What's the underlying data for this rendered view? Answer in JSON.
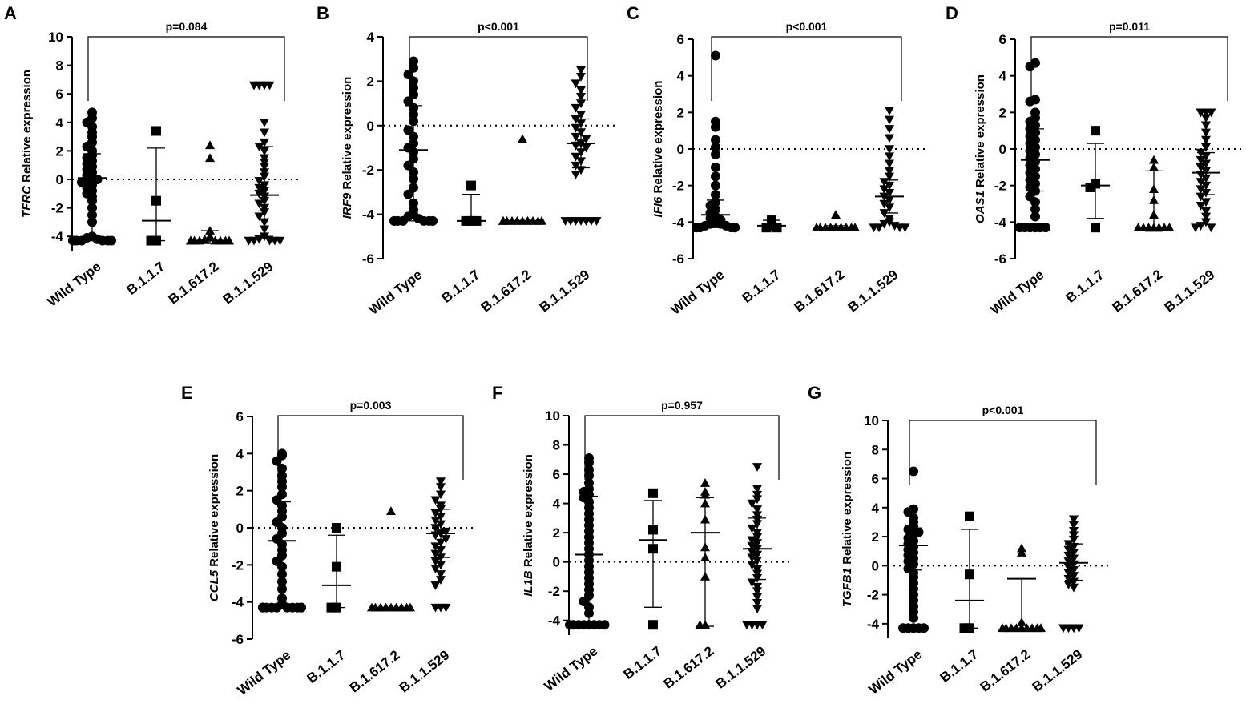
{
  "chart_data": [
    {
      "type": "scatter",
      "panel": "A",
      "gene": "TFRC",
      "ylabel_suffix": " Relative expression",
      "ylim": [
        -5,
        10
      ],
      "yticks": [
        -4,
        -2,
        0,
        2,
        4,
        6,
        8,
        10
      ],
      "categories": [
        "Wild Type",
        "B.1.1.7",
        "B.1.617.2",
        "B.1.1.529"
      ],
      "p_value": "p=0.084",
      "series": [
        {
          "name": "Wild Type",
          "marker": "circle",
          "mean": 0.1,
          "sd_low": -4.3,
          "sd_high": 1.8,
          "points": [
            4.7,
            4.3,
            4.0,
            3.7,
            3.3,
            3.0,
            2.6,
            2.3,
            2.0,
            1.7,
            1.5,
            1.3,
            1.1,
            0.9,
            0.7,
            0.5,
            0.3,
            0.2,
            0.1,
            0,
            -0.2,
            -0.4,
            -0.6,
            -0.8,
            -1.0,
            -1.2,
            -1.5,
            -2.0,
            -2.5,
            -3.0,
            -4.0,
            -4.1,
            -4.2,
            -4.3,
            -4.3,
            -4.3,
            -4.3,
            -4.3,
            -4.3,
            -4.3
          ]
        },
        {
          "name": "B.1.1.7",
          "marker": "square",
          "mean": -2.9,
          "sd_low": -4.3,
          "sd_high": 2.2,
          "points": [
            3.4,
            -1.5,
            -4.3,
            -4.3
          ]
        },
        {
          "name": "B.1.617.2",
          "marker": "triangle",
          "mean": -4.3,
          "sd_low": -4.5,
          "sd_high": -3.6,
          "points": [
            2.4,
            1.5,
            -3.6,
            -4.0,
            -4.2,
            -4.3,
            -4.3,
            -4.3,
            -4.3,
            -4.3,
            -4.3,
            -4.3,
            -4.3
          ]
        },
        {
          "name": "B.1.1.529",
          "marker": "tri-down",
          "mean": -1.1,
          "sd_low": -4.0,
          "sd_high": 2.3,
          "points": [
            6.6,
            6.6,
            6.6,
            6.6,
            4.0,
            3.3,
            2.6,
            2.3,
            2.0,
            1.5,
            1.2,
            0.9,
            0.5,
            0.2,
            -0.1,
            -0.4,
            -0.6,
            -0.8,
            -1.0,
            -1.2,
            -1.5,
            -1.7,
            -2.0,
            -2.3,
            -2.6,
            -3.0,
            -3.5,
            -4.0,
            -4.2,
            -4.3,
            -4.3,
            -4.3,
            -4.3,
            -4.3
          ]
        }
      ]
    },
    {
      "type": "scatter",
      "panel": "B",
      "gene": "IRF9",
      "ylabel_suffix": " Relative expression",
      "ylim": [
        -6,
        4
      ],
      "yticks": [
        -6,
        -4,
        -2,
        0,
        2,
        4
      ],
      "categories": [
        "Wild Type",
        "B.1.1.7",
        "B.1.617.2",
        "B.1.1.529"
      ],
      "p_value": "p<0.001",
      "series": [
        {
          "name": "Wild Type",
          "marker": "circle",
          "mean": -1.1,
          "sd_low": -4.3,
          "sd_high": 0.9,
          "points": [
            2.9,
            2.6,
            2.3,
            2.0,
            1.7,
            1.4,
            1.1,
            0.8,
            0.5,
            0.2,
            -0.2,
            -0.5,
            -0.8,
            -1.0,
            -1.2,
            -1.5,
            -1.8,
            -2.1,
            -2.4,
            -2.8,
            -3.1,
            -3.5,
            -3.8,
            -4.0,
            -4.1,
            -4.2,
            -4.3,
            -4.3,
            -4.3,
            -4.3,
            -4.3,
            -4.3,
            -4.3,
            -4.3
          ]
        },
        {
          "name": "B.1.1.7",
          "marker": "square",
          "mean": -4.3,
          "sd_low": -4.3,
          "sd_high": -3.1,
          "points": [
            -2.7,
            -4.3,
            -4.3,
            -4.3
          ]
        },
        {
          "name": "B.1.617.2",
          "marker": "triangle",
          "mean": -4.3,
          "sd_low": -4.3,
          "sd_high": -4.3,
          "points": [
            -0.6,
            -4.3,
            -4.3,
            -4.3,
            -4.3,
            -4.3,
            -4.3,
            -4.3,
            -4.3,
            -4.3,
            -4.3
          ]
        },
        {
          "name": "B.1.1.529",
          "marker": "tri-down",
          "mean": -0.8,
          "sd_low": -1.9,
          "sd_high": 0.3,
          "points": [
            2.5,
            2.2,
            1.9,
            1.6,
            1.3,
            1.0,
            0.8,
            0.5,
            0.3,
            0.1,
            -0.1,
            -0.3,
            -0.5,
            -0.6,
            -0.8,
            -0.9,
            -1.0,
            -1.2,
            -1.4,
            -1.6,
            -1.8,
            -2.0,
            -2.2,
            -4.3,
            -4.3,
            -4.3,
            -4.3,
            -4.3,
            -4.3,
            -4.3
          ]
        }
      ]
    },
    {
      "type": "scatter",
      "panel": "C",
      "gene": "IFI6",
      "ylabel_suffix": " Relative expression",
      "ylim": [
        -6,
        6
      ],
      "yticks": [
        -6,
        -4,
        -2,
        0,
        2,
        4,
        6
      ],
      "categories": [
        "Wild Type",
        "B.1.1.7",
        "B.1.617.2",
        "B.1.1.529"
      ],
      "p_value": "p<0.001",
      "series": [
        {
          "name": "Wild Type",
          "marker": "circle",
          "mean": -3.6,
          "sd_low": -4.3,
          "sd_high": -2.8,
          "points": [
            5.1,
            1.5,
            1.2,
            0.5,
            0.1,
            -0.3,
            -1.0,
            -1.5,
            -2.0,
            -2.5,
            -2.9,
            -3.1,
            -3.3,
            -3.5,
            -3.7,
            -3.8,
            -3.9,
            -4.0,
            -4.1,
            -4.1,
            -4.2,
            -4.2,
            -4.3,
            -4.3,
            -4.3,
            -4.3,
            -4.3,
            -4.3,
            -4.3,
            -4.3
          ]
        },
        {
          "name": "B.1.1.7",
          "marker": "square",
          "mean": -4.2,
          "sd_low": -4.3,
          "sd_high": -3.9,
          "points": [
            -3.9,
            -4.2,
            -4.3,
            -4.3
          ]
        },
        {
          "name": "B.1.617.2",
          "marker": "triangle",
          "mean": -4.3,
          "sd_low": -4.4,
          "sd_high": -4.2,
          "points": [
            -3.6,
            -4.3,
            -4.3,
            -4.3,
            -4.3,
            -4.3,
            -4.3,
            -4.3,
            -4.3,
            -4.3
          ]
        },
        {
          "name": "B.1.1.529",
          "marker": "tri-down",
          "mean": -2.6,
          "sd_low": -3.5,
          "sd_high": -1.7,
          "points": [
            2.1,
            1.6,
            1.1,
            0.6,
            0.0,
            -0.4,
            -0.8,
            -1.2,
            -1.5,
            -1.8,
            -2.0,
            -2.2,
            -2.4,
            -2.6,
            -2.8,
            -3.0,
            -3.2,
            -3.5,
            -3.8,
            -4.0,
            -4.1,
            -4.2,
            -4.3,
            -4.3,
            -4.3,
            -4.3
          ]
        }
      ]
    },
    {
      "type": "scatter",
      "panel": "D",
      "gene": "OAS1",
      "ylabel_suffix": " Relative expression",
      "ylim": [
        -6,
        6
      ],
      "yticks": [
        -6,
        -4,
        -2,
        0,
        2,
        4,
        6
      ],
      "categories": [
        "Wild Type",
        "B.1.1.7",
        "B.1.617.2",
        "B.1.1.529"
      ],
      "p_value": "p=0.011",
      "series": [
        {
          "name": "Wild Type",
          "marker": "circle",
          "mean": -0.6,
          "sd_low": -2.3,
          "sd_high": 1.1,
          "points": [
            4.7,
            4.5,
            2.7,
            2.6,
            2.0,
            1.7,
            1.5,
            1.3,
            1.1,
            0.9,
            0.7,
            0.5,
            0.3,
            0.1,
            -0.1,
            -0.3,
            -0.5,
            -0.7,
            -0.9,
            -1.1,
            -1.3,
            -1.5,
            -1.7,
            -1.9,
            -2.1,
            -2.3,
            -2.6,
            -2.9,
            -3.3,
            -3.7,
            -4.3,
            -4.3,
            -4.3,
            -4.3,
            -4.3,
            -4.3
          ]
        },
        {
          "name": "B.1.1.7",
          "marker": "square",
          "mean": -2.0,
          "sd_low": -3.8,
          "sd_high": 0.3,
          "points": [
            1.0,
            -1.9,
            -2.1,
            -4.3
          ]
        },
        {
          "name": "B.1.617.2",
          "marker": "triangle",
          "mean": -4.3,
          "sd_low": -4.5,
          "sd_high": -1.2,
          "points": [
            -0.6,
            -1.0,
            -2.2,
            -2.8,
            -3.6,
            -4.3,
            -4.3,
            -4.3,
            -4.3,
            -4.3,
            -4.3,
            -4.3
          ]
        },
        {
          "name": "B.1.1.529",
          "marker": "tri-down",
          "mean": -1.3,
          "sd_low": -2.5,
          "sd_high": -0.2,
          "points": [
            2.0,
            2.0,
            2.0,
            1.7,
            1.3,
            0.9,
            0.5,
            0.1,
            -0.2,
            -0.4,
            -0.6,
            -0.8,
            -1.0,
            -1.2,
            -1.4,
            -1.6,
            -1.8,
            -2.0,
            -2.2,
            -2.4,
            -2.6,
            -2.9,
            -3.1,
            -3.4,
            -3.7,
            -4.0,
            -4.2,
            -4.3,
            -4.3
          ]
        }
      ]
    },
    {
      "type": "scatter",
      "panel": "E",
      "gene": "CCL5",
      "ylabel_suffix": " Relative expression",
      "ylim": [
        -6,
        6
      ],
      "yticks": [
        -6,
        -4,
        -2,
        0,
        2,
        4,
        6
      ],
      "categories": [
        "Wild Type",
        "B.1.1.7",
        "B.1.617.2",
        "B.1.1.529"
      ],
      "p_value": "p=0.003",
      "series": [
        {
          "name": "Wild Type",
          "marker": "circle",
          "mean": -0.7,
          "sd_low": -4.3,
          "sd_high": 1.4,
          "points": [
            4.0,
            3.9,
            3.6,
            3.2,
            2.8,
            2.5,
            2.2,
            1.8,
            1.5,
            1.2,
            0.9,
            0.6,
            0.3,
            0.0,
            -0.3,
            -0.6,
            -0.9,
            -1.2,
            -1.5,
            -1.8,
            -2.1,
            -2.5,
            -2.9,
            -3.3,
            -3.8,
            -4.1,
            -4.3,
            -4.3,
            -4.3,
            -4.3,
            -4.3,
            -4.3,
            -4.3,
            -4.3,
            -4.3,
            -4.3,
            -4.3
          ]
        },
        {
          "name": "B.1.1.7",
          "marker": "square",
          "mean": -3.1,
          "sd_low": -4.3,
          "sd_high": -0.4,
          "points": [
            0.0,
            -2.1,
            -4.3,
            -4.3
          ]
        },
        {
          "name": "B.1.617.2",
          "marker": "triangle",
          "mean": -4.3,
          "sd_low": -4.3,
          "sd_high": -4.3,
          "points": [
            0.9,
            -4.3,
            -4.3,
            -4.3,
            -4.3,
            -4.3,
            -4.3,
            -4.3,
            -4.3,
            -4.3
          ]
        },
        {
          "name": "B.1.1.529",
          "marker": "tri-down",
          "mean": -0.3,
          "sd_low": -1.6,
          "sd_high": 1.0,
          "points": [
            2.5,
            2.2,
            1.8,
            1.5,
            1.2,
            1.0,
            0.8,
            0.6,
            0.4,
            0.2,
            0.0,
            -0.2,
            -0.3,
            -0.4,
            -0.6,
            -0.8,
            -1.0,
            -1.2,
            -1.4,
            -1.6,
            -1.8,
            -2.0,
            -2.2,
            -2.5,
            -2.8,
            -3.1,
            -4.3,
            -4.3,
            -4.3
          ]
        }
      ]
    },
    {
      "type": "scatter",
      "panel": "F",
      "gene": "IL1B",
      "ylabel_suffix": " Relative expression",
      "ylim": [
        -5,
        10
      ],
      "yticks": [
        -4,
        -2,
        0,
        2,
        4,
        6,
        8,
        10
      ],
      "categories": [
        "Wild Type",
        "B.1.1.7",
        "B.1.617.2",
        "B.1.1.529"
      ],
      "p_value": "p=0.957",
      "series": [
        {
          "name": "Wild Type",
          "marker": "circle",
          "mean": 0.5,
          "sd_low": -4.3,
          "sd_high": 4.5,
          "points": [
            7.1,
            6.8,
            6.3,
            5.9,
            5.4,
            5.0,
            4.8,
            4.6,
            4.4,
            4.1,
            3.7,
            3.3,
            2.9,
            2.5,
            2.1,
            1.7,
            1.3,
            0.9,
            0.5,
            0.1,
            -0.3,
            -0.7,
            -1.1,
            -1.5,
            -1.9,
            -2.3,
            -2.7,
            -3.1,
            -3.5,
            -4.3,
            -4.3,
            -4.3,
            -4.3,
            -4.3,
            -4.3,
            -4.3,
            -4.3
          ]
        },
        {
          "name": "B.1.1.7",
          "marker": "square",
          "mean": 1.5,
          "sd_low": -3.1,
          "sd_high": 4.2,
          "points": [
            4.7,
            2.2,
            0.9,
            -4.3
          ]
        },
        {
          "name": "B.1.617.2",
          "marker": "triangle",
          "mean": 2.0,
          "sd_low": -4.4,
          "sd_high": 4.4,
          "points": [
            5.4,
            4.8,
            4.6,
            4.0,
            2.9,
            1.0,
            0.3,
            -1.0,
            -4.3,
            -4.3
          ]
        },
        {
          "name": "B.1.1.529",
          "marker": "tri-down",
          "mean": 0.9,
          "sd_low": -1.2,
          "sd_high": 3.0,
          "points": [
            6.5,
            5.0,
            4.6,
            4.3,
            4.0,
            3.6,
            3.2,
            2.9,
            2.6,
            2.3,
            2.0,
            1.7,
            1.5,
            1.3,
            1.1,
            0.9,
            0.7,
            0.5,
            0.3,
            0.1,
            -0.2,
            -0.5,
            -0.8,
            -1.1,
            -1.4,
            -1.7,
            -2.0,
            -2.4,
            -2.8,
            -3.2,
            -4.3,
            -4.3,
            -4.3,
            -4.3
          ]
        }
      ]
    },
    {
      "type": "scatter",
      "panel": "G",
      "gene": "TGFB1",
      "ylabel_suffix": " Relative expression",
      "ylim": [
        -5,
        10
      ],
      "yticks": [
        -4,
        -2,
        0,
        2,
        4,
        6,
        8,
        10
      ],
      "categories": [
        "Wild Type",
        "B.1.1.7",
        "B.1.617.2",
        "B.1.1.529"
      ],
      "p_value": "p<0.001",
      "series": [
        {
          "name": "Wild Type",
          "marker": "circle",
          "mean": 1.4,
          "sd_low": -0.3,
          "sd_high": 2.6,
          "points": [
            6.5,
            3.9,
            3.7,
            3.3,
            3.0,
            2.7,
            2.5,
            2.3,
            2.1,
            1.9,
            1.7,
            1.5,
            1.3,
            1.1,
            0.9,
            0.7,
            0.5,
            0.3,
            0.1,
            -0.2,
            -0.5,
            -0.8,
            -1.2,
            -1.6,
            -2.0,
            -2.4,
            -2.8,
            -3.2,
            -3.6,
            -4.3,
            -4.3,
            -4.3,
            -4.3,
            -4.3
          ]
        },
        {
          "name": "B.1.1.7",
          "marker": "square",
          "mean": -2.4,
          "sd_low": -4.3,
          "sd_high": 2.5,
          "points": [
            3.4,
            -0.6,
            -4.3,
            -4.3
          ]
        },
        {
          "name": "B.1.617.2",
          "marker": "triangle",
          "mean": -0.9,
          "sd_low": -4.5,
          "sd_high": -0.9,
          "points": [
            1.2,
            0.9,
            -3.9,
            -4.3,
            -4.3,
            -4.3,
            -4.3,
            -4.3,
            -4.3,
            -4.3,
            -4.3,
            -4.3
          ]
        },
        {
          "name": "B.1.1.529",
          "marker": "tri-down",
          "mean": 0.2,
          "sd_low": -1.0,
          "sd_high": 1.5,
          "points": [
            3.2,
            2.8,
            2.4,
            2.1,
            1.8,
            1.5,
            1.3,
            1.1,
            0.9,
            0.7,
            0.5,
            0.3,
            0.1,
            -0.1,
            -0.3,
            -0.5,
            -0.7,
            -0.9,
            -1.1,
            -1.3,
            -1.5,
            -4.3,
            -4.3,
            -4.3,
            -4.3
          ]
        }
      ]
    }
  ]
}
